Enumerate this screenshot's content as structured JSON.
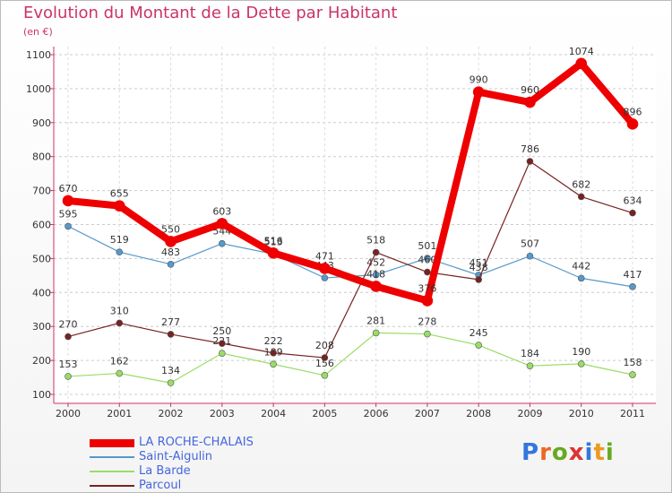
{
  "title": "Evolution du Montant de la Dette par Habitant",
  "subtitle": "(en €)",
  "logo": {
    "letters": [
      "P",
      "r",
      "o",
      "x",
      "i",
      "t",
      "i"
    ],
    "colors": [
      "#3377dd",
      "#ee6622",
      "#66aa22",
      "#dd3333",
      "#3377dd",
      "#ee9922",
      "#66aa22"
    ]
  },
  "chart_data": {
    "type": "line",
    "title": "Evolution du Montant de la Dette par Habitant",
    "subtitle": "(en €)",
    "x": [
      "2000",
      "2001",
      "2002",
      "2003",
      "2004",
      "2005",
      "2006",
      "2007",
      "2008",
      "2009",
      "2010",
      "2011"
    ],
    "ylim": [
      100,
      1100
    ],
    "yticks": [
      100,
      200,
      300,
      400,
      500,
      600,
      700,
      800,
      900,
      1000,
      1100
    ],
    "grid": "horizontal dashed",
    "legend_position": "bottom-left",
    "series": [
      {
        "name": "LA ROCHE-CHALAIS",
        "color": "#ee0000",
        "width": 8,
        "values": [
          670,
          655,
          550,
          603,
          516,
          471,
          418,
          376,
          990,
          960,
          1074,
          896
        ]
      },
      {
        "name": "Saint-Aigulin",
        "color": "#5599cc",
        "width": 1.2,
        "values": [
          595,
          519,
          483,
          544,
          513,
          443,
          452,
          501,
          451,
          507,
          442,
          417
        ]
      },
      {
        "name": "La Barde",
        "color": "#99dd66",
        "width": 1.2,
        "values": [
          153,
          162,
          134,
          221,
          189,
          156,
          281,
          278,
          245,
          184,
          190,
          158
        ]
      },
      {
        "name": "Parcoul",
        "color": "#772222",
        "width": 1.2,
        "values": [
          270,
          310,
          277,
          250,
          222,
          208,
          518,
          460,
          438,
          786,
          682,
          634
        ]
      }
    ]
  }
}
